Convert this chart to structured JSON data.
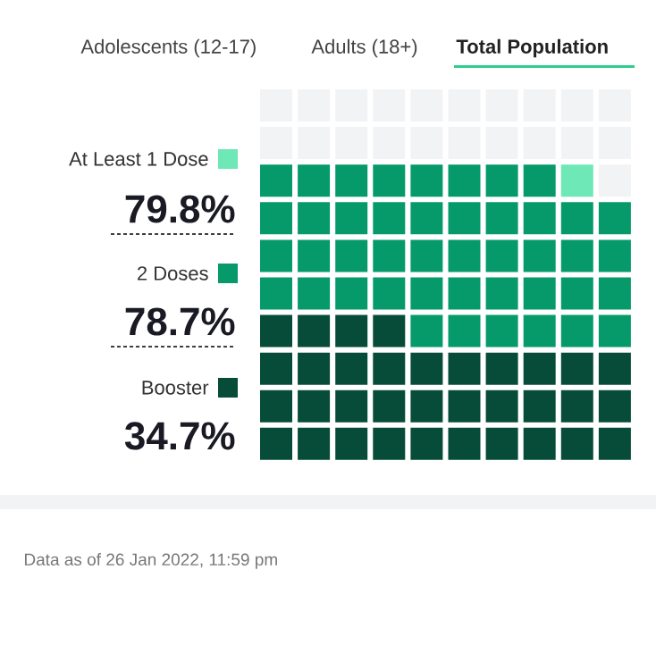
{
  "chart_data": {
    "type": "other",
    "categories": [
      "At Least 1 Dose",
      "2 Doses",
      "Booster"
    ],
    "values": [
      79.8,
      78.7,
      34.7
    ],
    "value_labels": [
      "79.8%",
      "78.7%",
      "34.7%"
    ],
    "colors": [
      "#6de8b6",
      "#069a6b",
      "#064c39"
    ],
    "annotations": [
      "Adolescents (12-17)",
      "Adults (18+)",
      "Total Population",
      "Data as of 26 Jan 2022, 11:59 pm"
    ]
  }
}
